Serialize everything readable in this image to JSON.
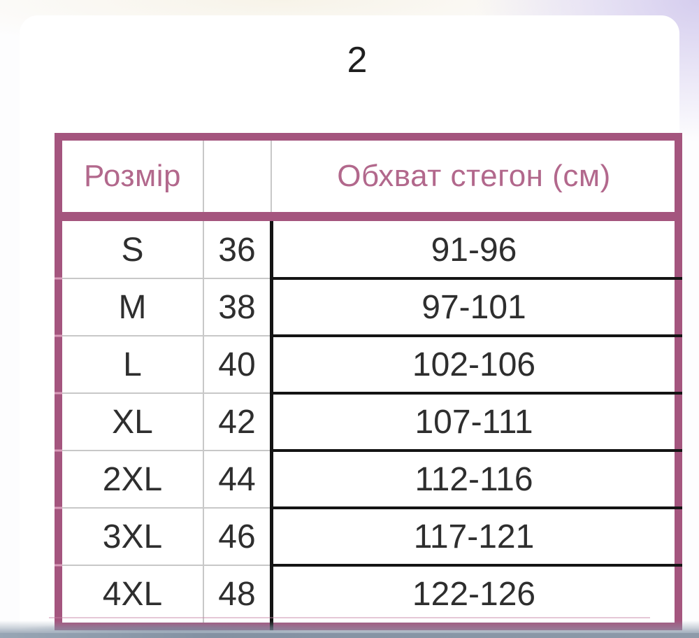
{
  "page": {
    "number": "2"
  },
  "table": {
    "header": {
      "size_label": "Розмір",
      "empty_label": "",
      "hips_label": "Обхват стегон (см)"
    },
    "rows": [
      {
        "size": "S",
        "num": "36",
        "hips": "91-96"
      },
      {
        "size": "M",
        "num": "38",
        "hips": "97-101"
      },
      {
        "size": "L",
        "num": "40",
        "hips": "102-106"
      },
      {
        "size": "XL",
        "num": "42",
        "hips": "107-111"
      },
      {
        "size": "2XL",
        "num": "44",
        "hips": "112-116"
      },
      {
        "size": "3XL",
        "num": "46",
        "hips": "117-121"
      },
      {
        "size": "4XL",
        "num": "48",
        "hips": "122-126"
      }
    ]
  },
  "colors": {
    "table_border": "#a4557e",
    "header_text": "#b2688c",
    "grid_gray": "#c8c8c8",
    "grid_black": "#141414",
    "body_text": "#2e2e2e",
    "background_accent": "#d5cdee",
    "bottom_band": "#8391a2"
  }
}
